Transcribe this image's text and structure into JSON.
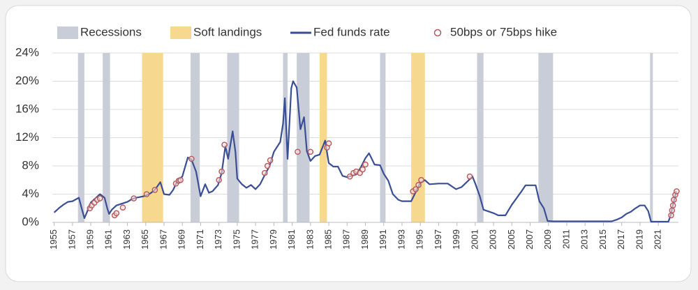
{
  "chart_data": {
    "type": "line",
    "xlim": [
      1954.8,
      2023.2
    ],
    "xticks": [
      1955,
      1957,
      1959,
      1961,
      1963,
      1965,
      1967,
      1969,
      1971,
      1973,
      1975,
      1977,
      1979,
      1981,
      1983,
      1985,
      1987,
      1989,
      1991,
      1993,
      1995,
      1997,
      1999,
      2001,
      2003,
      2005,
      2007,
      2009,
      2011,
      2013,
      2015,
      2017,
      2019,
      2021
    ],
    "ylim": [
      0,
      24
    ],
    "yticks": [
      {
        "value": 0,
        "label": "0%"
      },
      {
        "value": 4,
        "label": "4%"
      },
      {
        "value": 8,
        "label": "8%"
      },
      {
        "value": 12,
        "label": "12%"
      },
      {
        "value": 16,
        "label": "16%"
      },
      {
        "value": 20,
        "label": "20%"
      },
      {
        "value": 24,
        "label": "24%"
      }
    ],
    "grid": true,
    "legend": "top",
    "series": [
      {
        "name": "Recessions",
        "kind": "band",
        "color": "#c9cdd7",
        "ranges": [
          [
            1957.6,
            1958.3
          ],
          [
            1960.3,
            1961.1
          ],
          [
            1969.9,
            1970.9
          ],
          [
            1973.9,
            1975.2
          ],
          [
            1980.0,
            1980.5
          ],
          [
            1981.5,
            1982.9
          ],
          [
            1990.6,
            1991.2
          ],
          [
            2001.2,
            2001.9
          ],
          [
            2007.9,
            2009.5
          ],
          [
            2020.1,
            2020.4
          ]
        ]
      },
      {
        "name": "Soft landings",
        "kind": "band",
        "color": "#f6d88f",
        "ranges": [
          [
            1964.6,
            1966.9
          ],
          [
            1984.0,
            1984.8
          ],
          [
            1994.0,
            1995.5
          ]
        ]
      },
      {
        "name": "Fed funds rate",
        "kind": "line",
        "color": "#3a4e96",
        "x": [
          1955.0,
          1955.5,
          1956,
          1956.5,
          1957,
          1957.7,
          1958.0,
          1958.3,
          1958.6,
          1959,
          1959.5,
          1960,
          1960.5,
          1960.8,
          1961.0,
          1961.3,
          1961.8,
          1962.5,
          1963,
          1963.5,
          1964,
          1964.8,
          1965.5,
          1966,
          1966.6,
          1967,
          1967.6,
          1968,
          1968.5,
          1969,
          1969.6,
          1970,
          1970.5,
          1971,
          1971.5,
          1971.9,
          1972.3,
          1972.9,
          1973.3,
          1973.7,
          1974,
          1974.5,
          1974.8,
          1975,
          1975.5,
          1976,
          1976.5,
          1977,
          1977.5,
          1978,
          1978.5,
          1979,
          1979.7,
          1980.0,
          1980.2,
          1980.5,
          1980.9,
          1981.1,
          1981.5,
          1981.9,
          1982.3,
          1982.6,
          1983,
          1983.5,
          1984,
          1984.6,
          1985,
          1985.5,
          1986,
          1986.5,
          1987,
          1987.5,
          1988,
          1988.5,
          1989,
          1989.4,
          1990,
          1990.6,
          1991,
          1991.5,
          1992,
          1992.6,
          1993,
          1994,
          1994.5,
          1995,
          1995.5,
          1996,
          1997,
          1998,
          1998.9,
          1999.5,
          2000.3,
          2000.7,
          2001,
          2001.5,
          2001.9,
          2003,
          2003.5,
          2004.3,
          2005,
          2006,
          2006.5,
          2007.6,
          2008,
          2008.5,
          2008.9,
          2009.5,
          2015.9,
          2016.5,
          2017,
          2017.5,
          2018,
          2018.5,
          2019.0,
          2019.5,
          2019.9,
          2020.2,
          2022.1,
          2022.4,
          2022.6,
          2022.8,
          2022.95
        ],
        "values": [
          1.4,
          2.0,
          2.5,
          2.9,
          3.0,
          3.5,
          2.0,
          0.6,
          1.5,
          2.8,
          3.4,
          4.0,
          3.5,
          2.0,
          1.2,
          1.8,
          2.4,
          2.7,
          2.9,
          3.3,
          3.5,
          3.7,
          4.1,
          4.6,
          5.7,
          4.0,
          3.9,
          4.6,
          6.0,
          6.5,
          9.2,
          8.9,
          7.2,
          3.7,
          5.4,
          4.2,
          4.4,
          5.3,
          7.0,
          10.8,
          9.0,
          12.9,
          10.0,
          6.2,
          5.4,
          4.9,
          5.3,
          4.7,
          5.4,
          6.7,
          7.9,
          10.0,
          11.4,
          14.0,
          17.6,
          9.0,
          19.0,
          20.0,
          19.1,
          13.2,
          14.9,
          10.1,
          8.7,
          9.4,
          9.6,
          11.6,
          8.4,
          7.9,
          7.9,
          6.6,
          6.4,
          6.6,
          6.8,
          7.8,
          9.1,
          9.8,
          8.2,
          8.1,
          6.9,
          5.9,
          4.0,
          3.2,
          3.0,
          3.0,
          4.3,
          5.6,
          6.0,
          5.4,
          5.5,
          5.5,
          4.7,
          5.0,
          6.0,
          6.5,
          5.5,
          3.7,
          1.8,
          1.3,
          1.0,
          1.0,
          2.5,
          4.3,
          5.25,
          5.25,
          3.0,
          2.0,
          0.2,
          0.15,
          0.15,
          0.4,
          0.7,
          1.2,
          1.5,
          2.0,
          2.4,
          2.4,
          1.6,
          0.1,
          0.1,
          1.2,
          2.5,
          3.5,
          4.4
        ]
      },
      {
        "name": "50bps or 75bps hike",
        "kind": "points",
        "color": "#b5585b",
        "x": [
          1958.9,
          1959.1,
          1959.4,
          1959.7,
          1960.0,
          1961.6,
          1961.8,
          1962.5,
          1963.7,
          1965.1,
          1966.0,
          1968.3,
          1968.6,
          1968.8,
          1970.0,
          1973.0,
          1973.3,
          1973.6,
          1978.0,
          1978.3,
          1978.6,
          1981.6,
          1983.0,
          1984.8,
          1985.0,
          1987.3,
          1987.7,
          1988.0,
          1988.4,
          1988.7,
          1989.0,
          1994.2,
          1994.5,
          1994.8,
          1995.1,
          2000.4,
          2022.4,
          2022.5,
          2022.6,
          2022.7,
          2022.85,
          2023.0
        ],
        "values": [
          2.0,
          2.4,
          2.8,
          3.2,
          3.4,
          1.0,
          1.3,
          2.1,
          3.4,
          4.0,
          4.6,
          5.5,
          5.9,
          6.0,
          9.0,
          6.0,
          7.2,
          11.0,
          7.0,
          8.0,
          8.8,
          10.0,
          10.0,
          10.6,
          11.2,
          6.5,
          7.0,
          7.2,
          7.0,
          7.5,
          8.2,
          4.4,
          4.7,
          5.3,
          6.0,
          6.5,
          1.0,
          1.7,
          2.4,
          3.2,
          3.9,
          4.4
        ]
      }
    ]
  }
}
